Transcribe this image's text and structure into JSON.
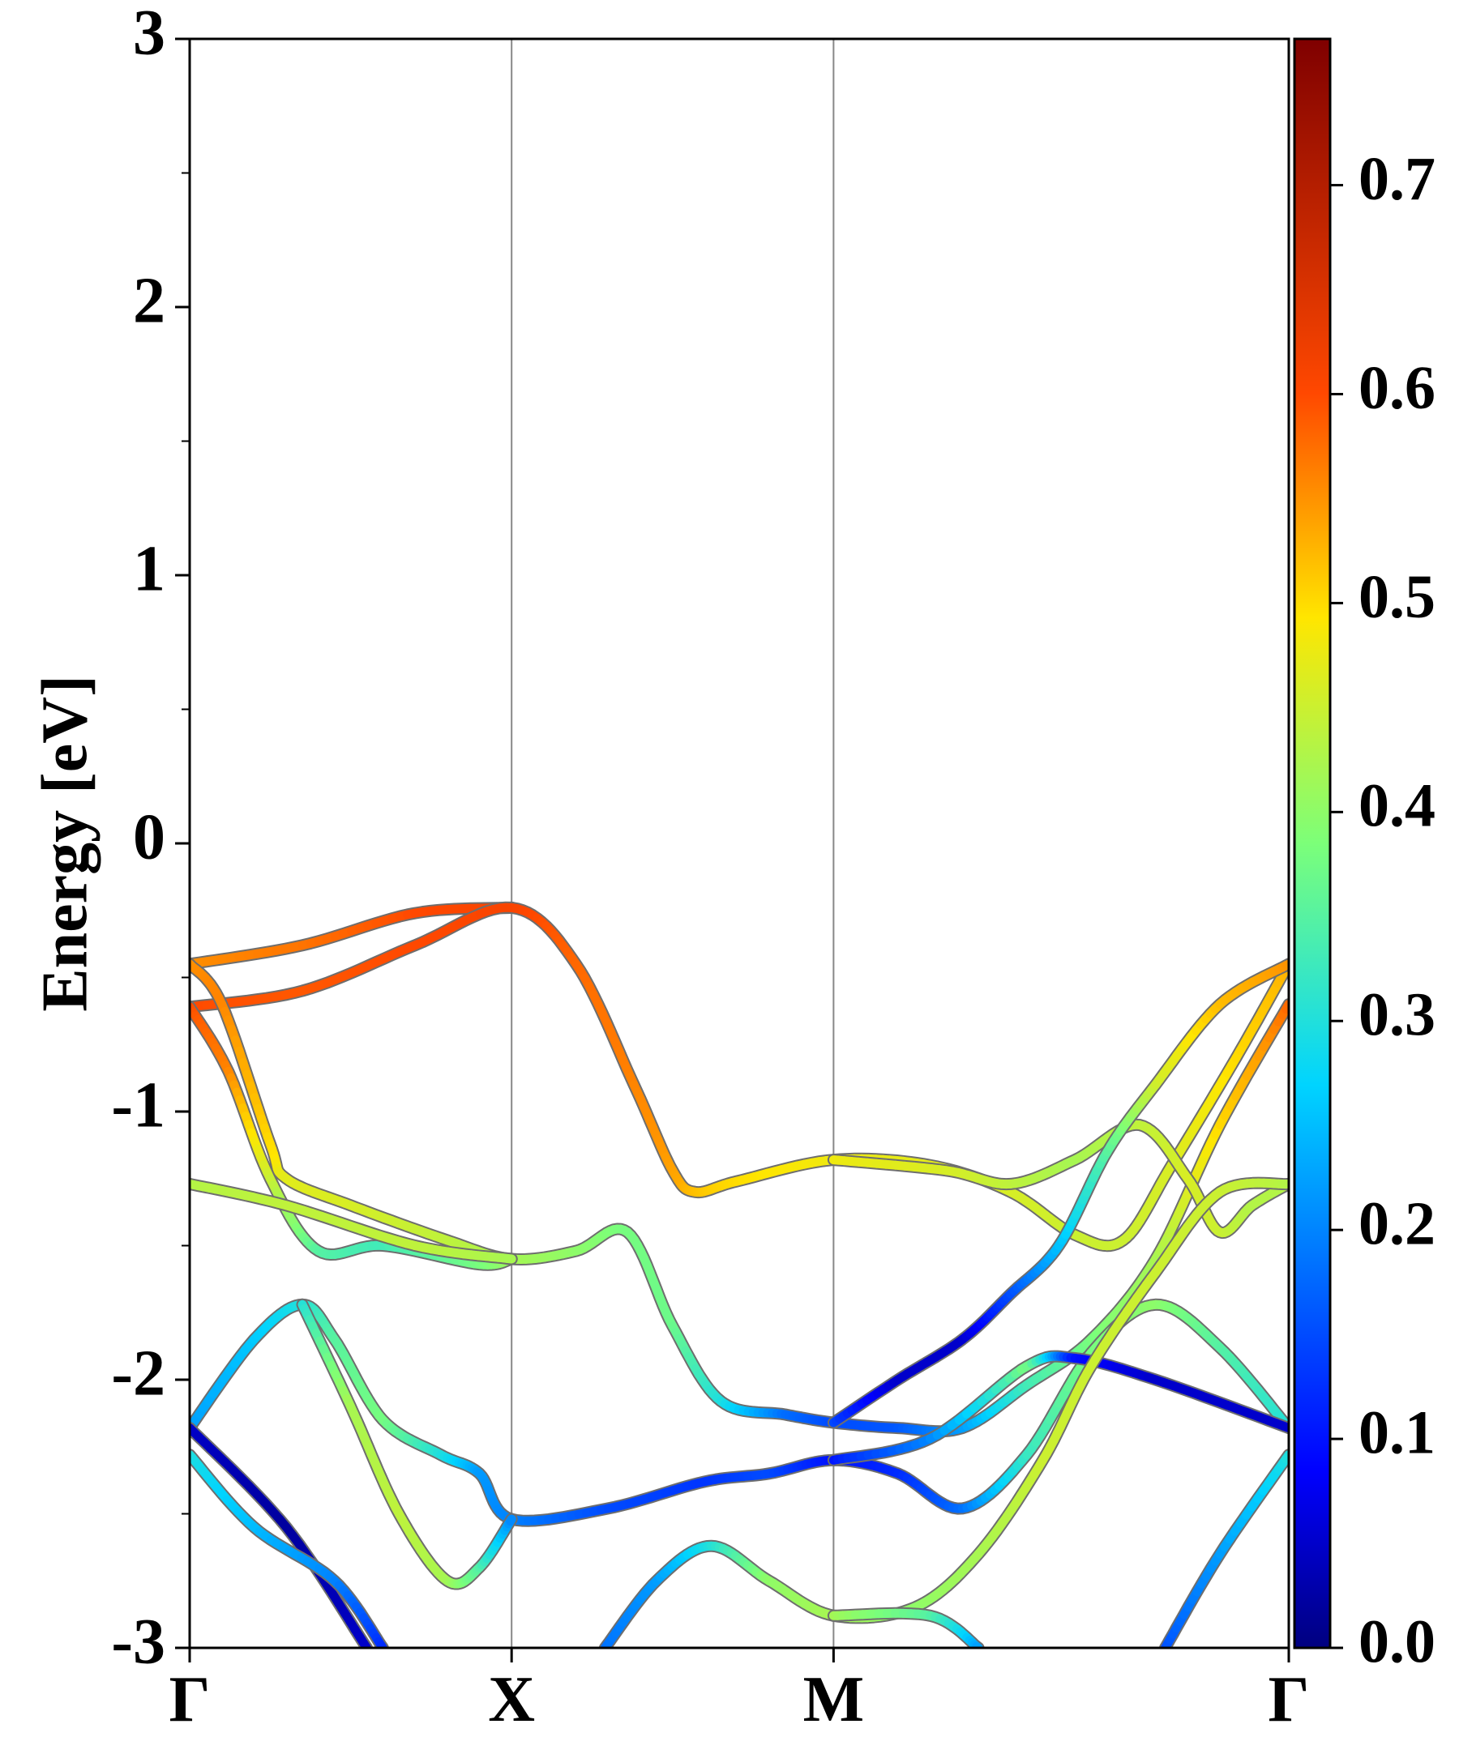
{
  "chart_data": {
    "type": "line",
    "title": "",
    "ylabel": "Energy [eV]",
    "xlabel": "",
    "ylim": [
      -3,
      3
    ],
    "yticks": [
      "3",
      "2",
      "1",
      "0",
      "-1",
      "-2",
      "-3"
    ],
    "ytick_values": [
      3,
      2,
      1,
      0,
      -1,
      -2,
      -3
    ],
    "kpoints": [
      {
        "label": "Γ",
        "pos": 0
      },
      {
        "label": "X",
        "pos": 1
      },
      {
        "label": "M",
        "pos": 2
      },
      {
        "label": "Γ",
        "pos": 3.414
      }
    ],
    "grid": false,
    "colorbar": {
      "colormap": "jet",
      "range": [
        0,
        0.77
      ],
      "ticks": [
        "0.0",
        "0.1",
        "0.2",
        "0.3",
        "0.4",
        "0.5",
        "0.6",
        "0.7"
      ],
      "tick_values": [
        0,
        0.1,
        0.2,
        0.3,
        0.4,
        0.5,
        0.6,
        0.7
      ]
    },
    "series": [
      {
        "points": [
          [
            0,
            -0.45,
            0.55
          ],
          [
            0.35,
            -0.38,
            0.57
          ],
          [
            0.7,
            -0.26,
            0.6
          ],
          [
            1,
            -0.24,
            0.61
          ]
        ]
      },
      {
        "points": [
          [
            0,
            -0.61,
            0.6
          ],
          [
            0.35,
            -0.55,
            0.59
          ],
          [
            0.7,
            -0.38,
            0.6
          ],
          [
            1,
            -0.24,
            0.61
          ],
          [
            1.2,
            -0.45,
            0.58
          ],
          [
            1.38,
            -0.9,
            0.56
          ],
          [
            1.5,
            -1.22,
            0.54
          ],
          [
            1.57,
            -1.3,
            0.52
          ],
          [
            1.7,
            -1.26,
            0.5
          ],
          [
            2,
            -1.18,
            0.48
          ],
          [
            2.3,
            -1.2,
            0.47
          ],
          [
            2.55,
            -1.3,
            0.46
          ],
          [
            2.75,
            -1.46,
            0.45
          ],
          [
            2.9,
            -1.48,
            0.45
          ],
          [
            3.05,
            -1.2,
            0.46
          ],
          [
            3.25,
            -0.8,
            0.5
          ],
          [
            3.414,
            -0.45,
            0.53
          ]
        ]
      },
      {
        "points": [
          [
            0,
            -0.45,
            0.55
          ],
          [
            0.1,
            -0.6,
            0.56
          ],
          [
            0.25,
            -1.12,
            0.5
          ],
          [
            0.3,
            -1.25,
            0.47
          ],
          [
            0.5,
            -1.35,
            0.46
          ],
          [
            0.8,
            -1.48,
            0.44
          ],
          [
            1,
            -1.55,
            0.42
          ],
          [
            1.2,
            -1.52,
            0.4
          ],
          [
            1.36,
            -1.45,
            0.38
          ],
          [
            1.5,
            -1.8,
            0.37
          ],
          [
            1.65,
            -2.08,
            0.3
          ],
          [
            1.85,
            -2.13,
            0.18
          ],
          [
            2,
            -2.16,
            0.15
          ],
          [
            2.2,
            -2.18,
            0.16
          ],
          [
            2.4,
            -2.18,
            0.22
          ],
          [
            2.6,
            -2.02,
            0.33
          ],
          [
            2.8,
            -1.85,
            0.38
          ],
          [
            3,
            -1.55,
            0.42
          ],
          [
            3.2,
            -1.05,
            0.5
          ],
          [
            3.414,
            -0.6,
            0.58
          ]
        ]
      },
      {
        "points": [
          [
            0,
            -0.61,
            0.6
          ],
          [
            0.12,
            -0.85,
            0.56
          ],
          [
            0.25,
            -1.25,
            0.45
          ],
          [
            0.4,
            -1.52,
            0.35
          ],
          [
            0.6,
            -1.5,
            0.33
          ],
          [
            0.9,
            -1.57,
            0.38
          ],
          [
            1,
            -1.55,
            0.42
          ]
        ]
      },
      {
        "points": [
          [
            0,
            -1.27,
            0.43
          ],
          [
            0.3,
            -1.35,
            0.44
          ],
          [
            0.7,
            -1.5,
            0.44
          ],
          [
            1,
            -1.55,
            0.42
          ]
        ]
      },
      {
        "points": [
          [
            2,
            -1.18,
            0.48
          ],
          [
            2.35,
            -1.22,
            0.46
          ],
          [
            2.55,
            -1.27,
            0.44
          ],
          [
            2.75,
            -1.18,
            0.42
          ],
          [
            2.95,
            -1.05,
            0.44
          ],
          [
            3.1,
            -1.25,
            0.46
          ],
          [
            3.2,
            -1.45,
            0.45
          ],
          [
            3.3,
            -1.35,
            0.43
          ],
          [
            3.414,
            -1.27,
            0.43
          ]
        ]
      },
      {
        "points": [
          [
            2,
            -2.16,
            0.15
          ],
          [
            2.2,
            -2.0,
            0.05
          ],
          [
            2.4,
            -1.85,
            0.05
          ],
          [
            2.55,
            -1.68,
            0.15
          ],
          [
            2.7,
            -1.5,
            0.25
          ],
          [
            2.85,
            -1.15,
            0.35
          ],
          [
            3,
            -0.9,
            0.45
          ],
          [
            3.2,
            -0.6,
            0.52
          ],
          [
            3.414,
            -0.45,
            0.55
          ]
        ]
      },
      {
        "points": [
          [
            0,
            -2.18,
            0.22
          ],
          [
            0.2,
            -1.85,
            0.26
          ],
          [
            0.35,
            -1.72,
            0.3
          ],
          [
            0.45,
            -1.85,
            0.35
          ],
          [
            0.6,
            -2.15,
            0.38
          ],
          [
            0.78,
            -2.28,
            0.3
          ],
          [
            0.9,
            -2.35,
            0.22
          ],
          [
            1,
            -2.52,
            0.2
          ],
          [
            1.3,
            -2.48,
            0.15
          ],
          [
            1.6,
            -2.38,
            0.13
          ],
          [
            1.8,
            -2.35,
            0.15
          ],
          [
            2,
            -2.3,
            0.1
          ],
          [
            2.2,
            -2.35,
            0.12
          ],
          [
            2.4,
            -2.48,
            0.18
          ],
          [
            2.6,
            -2.28,
            0.32
          ],
          [
            2.8,
            -1.9,
            0.38
          ],
          [
            3,
            -1.72,
            0.4
          ],
          [
            3.2,
            -1.88,
            0.35
          ],
          [
            3.414,
            -2.18,
            0.3
          ]
        ]
      },
      {
        "points": [
          [
            0,
            -2.18,
            0.05
          ],
          [
            0.3,
            -2.55,
            0.02
          ],
          [
            0.55,
            -3.0,
            0.05
          ]
        ]
      },
      {
        "points": [
          [
            0,
            -2.28,
            0.3
          ],
          [
            0.2,
            -2.55,
            0.25
          ],
          [
            0.45,
            -2.75,
            0.2
          ],
          [
            0.6,
            -3.0,
            0.12
          ]
        ]
      },
      {
        "points": [
          [
            0.35,
            -1.72,
            0.3
          ],
          [
            0.5,
            -2.1,
            0.42
          ],
          [
            0.65,
            -2.5,
            0.44
          ],
          [
            0.8,
            -2.75,
            0.42
          ],
          [
            0.9,
            -2.7,
            0.35
          ],
          [
            1,
            -2.52,
            0.2
          ]
        ]
      },
      {
        "points": [
          [
            2,
            -2.3,
            0.1
          ],
          [
            2.3,
            -2.22,
            0.2
          ],
          [
            2.6,
            -1.95,
            0.38
          ],
          [
            2.75,
            -1.92,
            0.1
          ],
          [
            3,
            -2.0,
            0.05
          ],
          [
            3.414,
            -2.18,
            0.05
          ]
        ]
      },
      {
        "points": [
          [
            1.29,
            -3.0,
            0.18
          ],
          [
            1.45,
            -2.75,
            0.22
          ],
          [
            1.62,
            -2.62,
            0.3
          ],
          [
            1.8,
            -2.75,
            0.4
          ],
          [
            2,
            -2.88,
            0.42
          ],
          [
            2.25,
            -2.85,
            0.4
          ],
          [
            2.45,
            -2.65,
            0.42
          ],
          [
            2.65,
            -2.3,
            0.45
          ],
          [
            2.8,
            -1.95,
            0.45
          ],
          [
            3,
            -1.6,
            0.45
          ],
          [
            3.2,
            -1.3,
            0.45
          ],
          [
            3.414,
            -1.27,
            0.43
          ]
        ]
      },
      {
        "points": [
          [
            2,
            -2.88,
            0.42
          ],
          [
            2.3,
            -2.88,
            0.35
          ],
          [
            2.45,
            -3.0,
            0.22
          ]
        ]
      },
      {
        "points": [
          [
            3.03,
            -3.0,
            0.15
          ],
          [
            3.2,
            -2.65,
            0.22
          ],
          [
            3.414,
            -2.28,
            0.3
          ]
        ]
      }
    ]
  }
}
